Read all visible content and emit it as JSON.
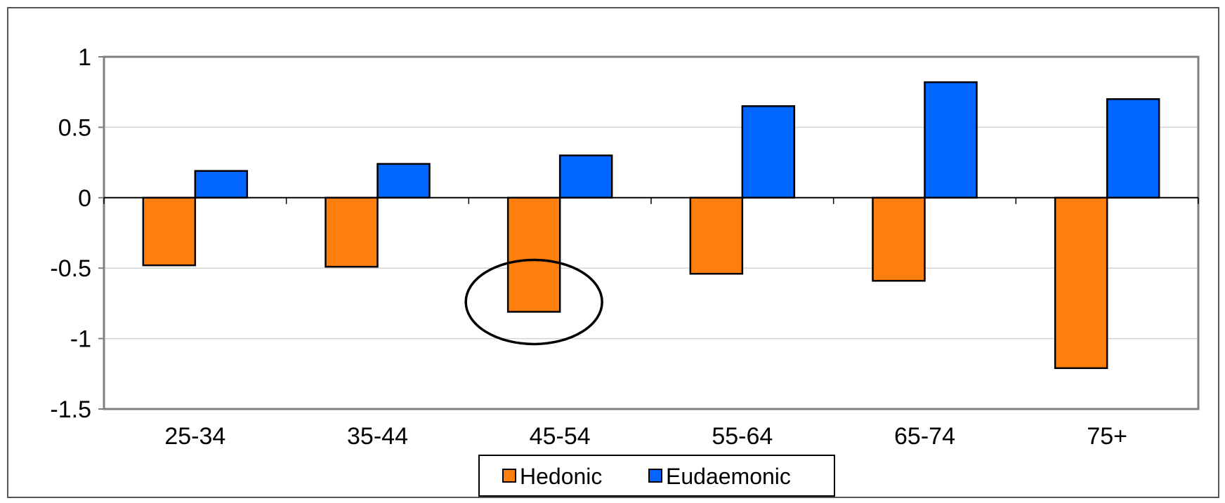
{
  "chart_data": {
    "type": "bar",
    "title": "",
    "xlabel": "",
    "ylabel": "",
    "categories": [
      "25-34",
      "35-44",
      "45-54",
      "55-64",
      "65-74",
      "75+"
    ],
    "series": [
      {
        "name": "Hedonic",
        "values": [
          -0.48,
          -0.49,
          -0.81,
          -0.54,
          -0.59,
          -1.21
        ],
        "color": "#ff7f0e"
      },
      {
        "name": "Eudaemonic",
        "values": [
          0.19,
          0.24,
          0.3,
          0.65,
          0.82,
          0.7
        ],
        "color": "#0066ff"
      }
    ],
    "ylim": [
      -1.5,
      1
    ],
    "yticks": [
      1,
      0.5,
      0,
      -0.5,
      -1,
      -1.5
    ],
    "ytick_labels": [
      "1",
      "0.5",
      "0",
      "-0.5",
      "-1",
      "-1.5"
    ],
    "grid": true,
    "legend_position": "bottom",
    "highlight": {
      "category": "45-54",
      "series": "Hedonic",
      "shape": "ellipse"
    }
  }
}
